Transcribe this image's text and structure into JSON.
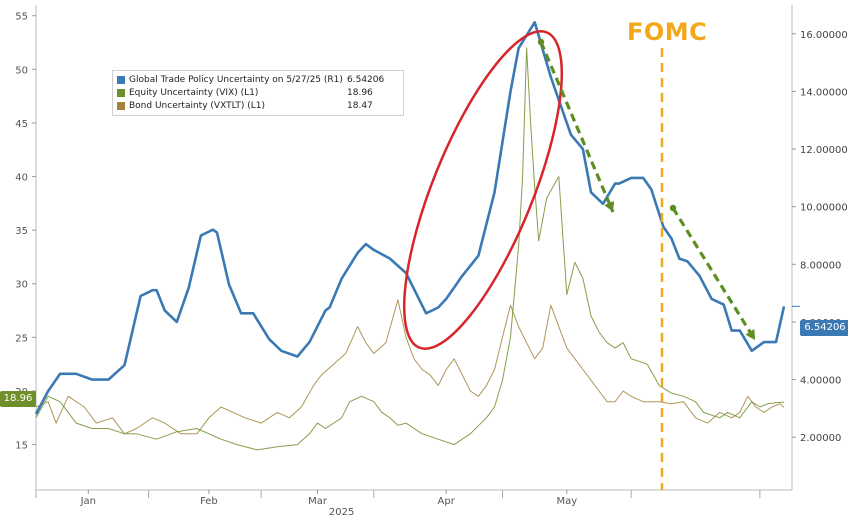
{
  "fomc_label": "FOMC",
  "year_label": "2025",
  "chart_data": {
    "type": "line",
    "x_labels": [
      "Jan",
      "Feb",
      "Mar",
      "Apr",
      "May"
    ],
    "left_axis": {
      "ticks": [
        "15",
        "20",
        "25",
        "30",
        "35",
        "40",
        "45",
        "50",
        "55"
      ],
      "ylim": [
        13,
        56
      ]
    },
    "right_axis": {
      "ticks": [
        "2.00000",
        "4.00000",
        "6.00000",
        "8.00000",
        "10.00000",
        "12.00000",
        "14.00000",
        "16.00000"
      ],
      "ylim": [
        1,
        17
      ]
    },
    "legend": [
      {
        "name": "Global Trade Policy Uncertainty on 5/27/25 (R1)",
        "value": "6.54206",
        "color": "#3B79B4"
      },
      {
        "name": "Equity Uncertainty (VIX) (L1)",
        "value": "18.96",
        "color": "#6E8F2A"
      },
      {
        "name": "Bond Uncertainty (VXTLT) (L1)",
        "value": "18.47",
        "color": "#A0853A"
      }
    ],
    "series": [
      {
        "name": "Global Trade Policy Uncertainty on 5/27/25 (R1)",
        "axis": "right",
        "color": "#3B79B4",
        "x": [
          0,
          3,
          6,
          10,
          14,
          18,
          22,
          26,
          29,
          30,
          32,
          35,
          38,
          41,
          44,
          45,
          48,
          51,
          54,
          58,
          61,
          65,
          68,
          72,
          73,
          76,
          80,
          82,
          84,
          88,
          92,
          97,
          100,
          102,
          106,
          110,
          114,
          118,
          120,
          124,
          128,
          133,
          136,
          138,
          141,
          144,
          145,
          148,
          151,
          153,
          156,
          158,
          160,
          162,
          165,
          168,
          171,
          173,
          175,
          178,
          181,
          184,
          186
        ],
        "y": [
          2.8,
          3.6,
          4.2,
          4.2,
          4.0,
          4.0,
          4.5,
          6.9,
          7.1,
          7.1,
          6.4,
          6.0,
          7.2,
          9.0,
          9.2,
          9.1,
          7.3,
          6.3,
          6.3,
          5.4,
          5.0,
          4.8,
          5.3,
          6.4,
          6.5,
          7.5,
          8.4,
          8.7,
          8.5,
          8.2,
          7.7,
          6.3,
          6.5,
          6.8,
          7.6,
          8.3,
          10.5,
          14.0,
          15.5,
          16.4,
          14.5,
          12.5,
          12.0,
          10.5,
          10.1,
          10.8,
          10.8,
          11.0,
          11.0,
          10.6,
          9.3,
          8.9,
          8.2,
          8.1,
          7.6,
          6.8,
          6.6,
          5.7,
          5.7,
          5.0,
          5.3,
          5.3,
          6.54
        ]
      },
      {
        "name": "Equity Uncertainty (VIX) (L1)",
        "axis": "left",
        "color": "#6E8F2A",
        "x": [
          0,
          3,
          6,
          10,
          14,
          18,
          22,
          25,
          30,
          35,
          40,
          43,
          46,
          50,
          55,
          60,
          65,
          68,
          70,
          72,
          76,
          78,
          81,
          84,
          86,
          88,
          90,
          92,
          96,
          100,
          104,
          108,
          112,
          114,
          116,
          118,
          120,
          121,
          122,
          123,
          124,
          125,
          127,
          130,
          132,
          134,
          136,
          138,
          140,
          142,
          144,
          146,
          148,
          152,
          155,
          158,
          161,
          164,
          166,
          170,
          172,
          175,
          178,
          180,
          182,
          184,
          186
        ],
        "y": [
          17.5,
          19.5,
          19.0,
          17.0,
          16.5,
          16.5,
          16.0,
          16.0,
          15.5,
          16.2,
          16.5,
          16.0,
          15.5,
          15.0,
          14.5,
          14.8,
          15.0,
          16.0,
          17.0,
          16.5,
          17.5,
          19.0,
          19.5,
          19.0,
          18.0,
          17.5,
          16.8,
          17.0,
          16.0,
          15.5,
          15.0,
          16.0,
          17.5,
          18.5,
          21.0,
          25.0,
          33.5,
          40.0,
          52.0,
          45.0,
          39.0,
          34.0,
          38.0,
          40.0,
          29.0,
          32.0,
          30.5,
          27.0,
          25.5,
          24.5,
          24.0,
          24.5,
          23.0,
          22.5,
          20.5,
          19.8,
          19.5,
          19.0,
          18.0,
          17.5,
          18.0,
          17.5,
          19.0,
          18.5,
          18.8,
          18.9,
          18.96
        ]
      },
      {
        "name": "Bond Uncertainty (VXTLT) (L1)",
        "axis": "left",
        "color": "#A0853A",
        "x": [
          0,
          3,
          5,
          8,
          12,
          15,
          19,
          22,
          25,
          29,
          32,
          36,
          40,
          43,
          46,
          49,
          52,
          56,
          60,
          63,
          66,
          69,
          71,
          74,
          77,
          80,
          82,
          84,
          87,
          90,
          92,
          94,
          96,
          98,
          100,
          102,
          104,
          106,
          108,
          110,
          112,
          114,
          116,
          118,
          120,
          122,
          124,
          126,
          128,
          130,
          132,
          134,
          136,
          138,
          140,
          142,
          144,
          146,
          148,
          151,
          153,
          155,
          158,
          161,
          164,
          167,
          170,
          173,
          175,
          177,
          179,
          181,
          183,
          185,
          186
        ],
        "y": [
          18.5,
          19.0,
          17.0,
          19.5,
          18.5,
          17.0,
          17.5,
          16.0,
          16.5,
          17.5,
          17.0,
          16.0,
          16.0,
          17.5,
          18.5,
          18.0,
          17.5,
          17.0,
          18.0,
          17.5,
          18.5,
          20.5,
          21.5,
          22.5,
          23.5,
          26.0,
          24.5,
          23.5,
          24.5,
          28.5,
          25.0,
          23.0,
          22.0,
          21.5,
          20.5,
          22.0,
          23.0,
          21.5,
          20.0,
          19.5,
          20.5,
          22.0,
          25.0,
          28.0,
          26.0,
          24.5,
          23.0,
          24.0,
          28.0,
          26.0,
          24.0,
          23.0,
          22.0,
          21.0,
          20.0,
          19.0,
          19.0,
          20.0,
          19.5,
          19.0,
          19.0,
          19.0,
          18.8,
          19.0,
          17.5,
          17.0,
          18.0,
          17.5,
          18.0,
          19.5,
          18.5,
          18.0,
          18.5,
          18.8,
          18.47
        ]
      }
    ],
    "annotations": [
      {
        "type": "ellipse",
        "color": "#D7262B"
      },
      {
        "type": "dashed-arrow",
        "color": "#5E8D22"
      },
      {
        "type": "dashed-arrow",
        "color": "#5E8D22"
      },
      {
        "type": "vertical-dashed-line",
        "label": "FOMC",
        "color": "#F3A81C"
      }
    ],
    "right_badge": "6.54206",
    "left_badge": "18.96"
  }
}
